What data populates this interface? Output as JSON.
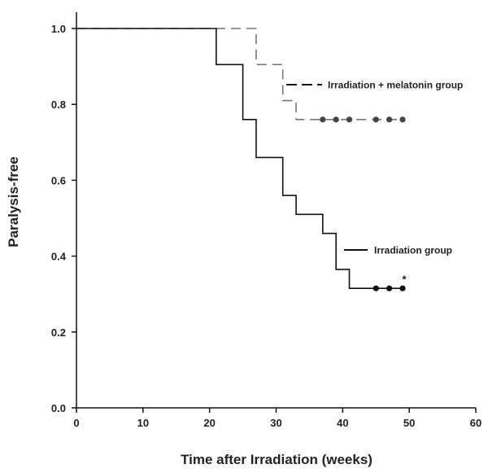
{
  "chart_data": {
    "type": "line",
    "title": "",
    "xlabel": "Time after Irradiation (weeks)",
    "ylabel": "Paralysis-free",
    "xlim": [
      0,
      60
    ],
    "ylim": [
      0,
      1.0
    ],
    "x_ticks": [
      0,
      10,
      20,
      30,
      40,
      50,
      60
    ],
    "x_tick_labels": [
      "0",
      "10",
      "20",
      "30",
      "40",
      "50",
      "60"
    ],
    "y_ticks": [
      0,
      0.2,
      0.4,
      0.6,
      0.8,
      1.0
    ],
    "y_tick_labels": [
      "0.0",
      "0.2",
      "0.4",
      "0.6",
      "0.8",
      "1.0"
    ],
    "grid": false,
    "legend_placement": "inline-right",
    "annotations": [
      {
        "text": "*",
        "x": 49,
        "y": 0.355
      }
    ],
    "series": [
      {
        "name": "Irradiation + melatonin group",
        "style": "dashed",
        "color": "#777777",
        "steps": [
          [
            0,
            1.0
          ],
          [
            27,
            0.905
          ],
          [
            31,
            0.81
          ],
          [
            33,
            0.76
          ],
          [
            49,
            0.76
          ]
        ],
        "censored_x": [
          37,
          39,
          41,
          45,
          47,
          49
        ]
      },
      {
        "name": "Irradiation group",
        "style": "solid",
        "color": "#111111",
        "steps": [
          [
            0,
            1.0
          ],
          [
            21,
            0.905
          ],
          [
            25,
            0.76
          ],
          [
            27,
            0.66
          ],
          [
            31,
            0.56
          ],
          [
            33,
            0.51
          ],
          [
            37,
            0.46
          ],
          [
            39,
            0.365
          ],
          [
            41,
            0.315
          ],
          [
            49,
            0.315
          ]
        ],
        "censored_x": [
          45,
          47,
          49
        ]
      }
    ]
  }
}
